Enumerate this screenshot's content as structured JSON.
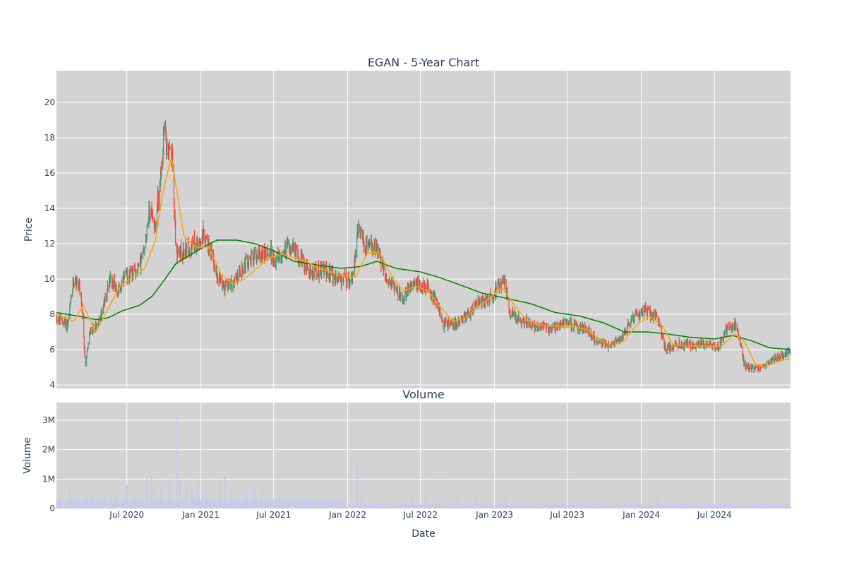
{
  "chart_data": [
    {
      "panel": "price",
      "type": "candlestick",
      "title": "EGAN - 5-Year Chart",
      "ylabel": "Price",
      "ylim": [
        3.8,
        21.8
      ],
      "xlim": [
        "2020-01-08",
        "2025-01-06"
      ],
      "yticks": [
        4,
        6,
        8,
        10,
        12,
        14,
        16,
        18,
        20
      ],
      "background": "#d3d3d3",
      "grid": true,
      "colors": {
        "up": "#3d9970",
        "down": "#ff4136",
        "ma_short": "#ffa500",
        "ma_long": "#008000"
      },
      "close_anchors": [
        [
          "2020-01-08",
          7.8
        ],
        [
          "2020-02-05",
          7.4
        ],
        [
          "2020-02-20",
          10.0
        ],
        [
          "2020-03-05",
          9.6
        ],
        [
          "2020-03-12",
          8.0
        ],
        [
          "2020-03-20",
          5.2
        ],
        [
          "2020-04-01",
          7.0
        ],
        [
          "2020-04-20",
          7.5
        ],
        [
          "2020-05-05",
          8.5
        ],
        [
          "2020-05-20",
          10.0
        ],
        [
          "2020-06-10",
          9.4
        ],
        [
          "2020-07-01",
          10.2
        ],
        [
          "2020-07-20",
          10.3
        ],
        [
          "2020-08-10",
          11.3
        ],
        [
          "2020-08-25",
          13.8
        ],
        [
          "2020-09-10",
          13.2
        ],
        [
          "2020-09-25",
          16.0
        ],
        [
          "2020-10-02",
          18.5
        ],
        [
          "2020-10-12",
          17.2
        ],
        [
          "2020-10-22",
          16.8
        ],
        [
          "2020-11-01",
          11.3
        ],
        [
          "2020-11-20",
          11.6
        ],
        [
          "2020-12-15",
          12.0
        ],
        [
          "2021-01-10",
          12.5
        ],
        [
          "2021-01-25",
          11.6
        ],
        [
          "2021-02-10",
          10.2
        ],
        [
          "2021-03-01",
          9.6
        ],
        [
          "2021-03-25",
          9.8
        ],
        [
          "2021-04-20",
          10.8
        ],
        [
          "2021-05-20",
          11.4
        ],
        [
          "2021-06-20",
          11.5
        ],
        [
          "2021-07-10",
          11.0
        ],
        [
          "2021-08-10",
          12.0
        ],
        [
          "2021-09-05",
          11.2
        ],
        [
          "2021-10-01",
          10.4
        ],
        [
          "2021-11-01",
          10.6
        ],
        [
          "2021-12-01",
          10.0
        ],
        [
          "2022-01-05",
          9.9
        ],
        [
          "2022-01-15",
          10.2
        ],
        [
          "2022-01-25",
          12.8
        ],
        [
          "2022-02-15",
          11.8
        ],
        [
          "2022-03-15",
          11.8
        ],
        [
          "2022-04-10",
          9.8
        ],
        [
          "2022-05-01",
          9.4
        ],
        [
          "2022-05-20",
          9.0
        ],
        [
          "2022-06-10",
          9.8
        ],
        [
          "2022-07-10",
          9.6
        ],
        [
          "2022-08-10",
          8.8
        ],
        [
          "2022-08-25",
          7.5
        ],
        [
          "2022-09-25",
          7.4
        ],
        [
          "2022-10-25",
          8.0
        ],
        [
          "2022-11-20",
          8.6
        ],
        [
          "2022-12-25",
          9.0
        ],
        [
          "2023-01-25",
          9.9
        ],
        [
          "2023-02-10",
          8.0
        ],
        [
          "2023-03-15",
          7.6
        ],
        [
          "2023-04-20",
          7.3
        ],
        [
          "2023-05-20",
          7.2
        ],
        [
          "2023-06-25",
          7.5
        ],
        [
          "2023-07-25",
          7.3
        ],
        [
          "2023-08-25",
          7.0
        ],
        [
          "2023-09-15",
          6.4
        ],
        [
          "2023-10-10",
          6.2
        ],
        [
          "2023-11-10",
          6.6
        ],
        [
          "2023-12-10",
          7.8
        ],
        [
          "2024-01-10",
          8.2
        ],
        [
          "2024-02-10",
          7.8
        ],
        [
          "2024-03-01",
          6.0
        ],
        [
          "2024-04-01",
          6.3
        ],
        [
          "2024-05-01",
          6.2
        ],
        [
          "2024-06-01",
          6.3
        ],
        [
          "2024-07-10",
          6.1
        ],
        [
          "2024-08-01",
          7.2
        ],
        [
          "2024-08-25",
          7.4
        ],
        [
          "2024-09-15",
          5.0
        ],
        [
          "2024-10-15",
          4.9
        ],
        [
          "2024-11-20",
          5.4
        ],
        [
          "2024-12-20",
          5.7
        ],
        [
          "2025-01-06",
          6.0
        ]
      ],
      "ma_short_anchors": [
        [
          "2020-01-08",
          8.0
        ],
        [
          "2020-02-20",
          7.6
        ],
        [
          "2020-03-15",
          8.5
        ],
        [
          "2020-04-15",
          7.0
        ],
        [
          "2020-05-15",
          8.3
        ],
        [
          "2020-06-15",
          9.6
        ],
        [
          "2020-07-15",
          10.1
        ],
        [
          "2020-08-15",
          10.6
        ],
        [
          "2020-09-10",
          12.2
        ],
        [
          "2020-10-01",
          15.2
        ],
        [
          "2020-10-20",
          16.9
        ],
        [
          "2020-11-20",
          12.4
        ],
        [
          "2020-12-20",
          11.8
        ],
        [
          "2021-01-20",
          11.8
        ],
        [
          "2021-02-20",
          10.3
        ],
        [
          "2021-03-20",
          9.7
        ],
        [
          "2021-04-20",
          10.0
        ],
        [
          "2021-05-20",
          10.6
        ],
        [
          "2021-06-20",
          11.2
        ],
        [
          "2021-07-20",
          11.4
        ],
        [
          "2021-08-20",
          11.2
        ],
        [
          "2021-09-20",
          11.0
        ],
        [
          "2021-10-20",
          10.6
        ],
        [
          "2021-12-20",
          10.2
        ],
        [
          "2022-01-20",
          10.1
        ],
        [
          "2022-02-20",
          11.5
        ],
        [
          "2022-03-20",
          11.5
        ],
        [
          "2022-04-20",
          10.2
        ],
        [
          "2022-05-20",
          9.3
        ],
        [
          "2022-06-20",
          9.6
        ],
        [
          "2022-07-20",
          9.3
        ],
        [
          "2022-08-20",
          8.4
        ],
        [
          "2022-09-20",
          7.6
        ],
        [
          "2022-10-20",
          7.8
        ],
        [
          "2022-11-20",
          8.4
        ],
        [
          "2022-12-20",
          8.9
        ],
        [
          "2023-01-20",
          9.5
        ],
        [
          "2023-02-20",
          8.5
        ],
        [
          "2023-03-20",
          7.7
        ],
        [
          "2023-04-20",
          7.4
        ],
        [
          "2023-06-20",
          7.3
        ],
        [
          "2023-07-20",
          7.3
        ],
        [
          "2023-08-20",
          7.1
        ],
        [
          "2023-09-20",
          6.6
        ],
        [
          "2023-10-20",
          6.2
        ],
        [
          "2023-11-20",
          6.5
        ],
        [
          "2023-12-20",
          7.4
        ],
        [
          "2024-01-20",
          7.9
        ],
        [
          "2024-02-20",
          7.4
        ],
        [
          "2024-03-20",
          6.3
        ],
        [
          "2024-04-20",
          6.2
        ],
        [
          "2024-06-20",
          6.2
        ],
        [
          "2024-07-20",
          6.2
        ],
        [
          "2024-08-20",
          6.9
        ],
        [
          "2024-09-15",
          6.4
        ],
        [
          "2024-10-10",
          5.2
        ],
        [
          "2024-11-01",
          5.0
        ],
        [
          "2024-12-01",
          5.3
        ],
        [
          "2025-01-06",
          5.5
        ]
      ],
      "ma_long_anchors": [
        [
          "2020-01-08",
          8.1
        ],
        [
          "2020-03-01",
          7.9
        ],
        [
          "2020-04-15",
          7.7
        ],
        [
          "2020-05-15",
          7.8
        ],
        [
          "2020-06-20",
          8.2
        ],
        [
          "2020-08-01",
          8.5
        ],
        [
          "2020-09-01",
          9.0
        ],
        [
          "2020-10-01",
          9.9
        ],
        [
          "2020-11-01",
          10.9
        ],
        [
          "2020-12-01",
          11.3
        ],
        [
          "2021-01-15",
          11.9
        ],
        [
          "2021-02-10",
          12.2
        ],
        [
          "2021-04-01",
          12.2
        ],
        [
          "2021-05-15",
          12.0
        ],
        [
          "2021-07-01",
          11.6
        ],
        [
          "2021-08-20",
          11.0
        ],
        [
          "2021-10-15",
          10.8
        ],
        [
          "2021-12-15",
          10.6
        ],
        [
          "2022-02-01",
          10.7
        ],
        [
          "2022-03-15",
          11.0
        ],
        [
          "2022-05-01",
          10.6
        ],
        [
          "2022-07-01",
          10.4
        ],
        [
          "2022-08-15",
          10.1
        ],
        [
          "2022-10-15",
          9.6
        ],
        [
          "2022-12-01",
          9.2
        ],
        [
          "2023-02-01",
          8.9
        ],
        [
          "2023-04-01",
          8.6
        ],
        [
          "2023-06-01",
          8.1
        ],
        [
          "2023-08-01",
          7.9
        ],
        [
          "2023-10-01",
          7.5
        ],
        [
          "2023-11-20",
          7.0
        ],
        [
          "2024-01-15",
          7.0
        ],
        [
          "2024-03-01",
          6.9
        ],
        [
          "2024-05-01",
          6.7
        ],
        [
          "2024-07-01",
          6.6
        ],
        [
          "2024-08-15",
          6.8
        ],
        [
          "2024-10-01",
          6.5
        ],
        [
          "2024-11-15",
          6.1
        ],
        [
          "2025-01-06",
          6.0
        ]
      ]
    },
    {
      "panel": "volume",
      "type": "bar",
      "title": "Volume",
      "xlabel": "Date",
      "ylabel": "Volume",
      "ylim": [
        0,
        3600000
      ],
      "yticks": [
        0,
        1000000,
        2000000,
        3000000
      ],
      "ytick_labels": [
        "0",
        "1M",
        "2M",
        "3M"
      ],
      "xticks": [
        "2020-07-01",
        "2021-01-01",
        "2021-07-01",
        "2022-01-01",
        "2022-07-01",
        "2023-01-01",
        "2023-07-01",
        "2024-01-01",
        "2024-07-01"
      ],
      "xtick_labels": [
        "Jul 2020",
        "Jan 2021",
        "Jul 2021",
        "Jan 2022",
        "Jul 2022",
        "Jan 2023",
        "Jul 2023",
        "Jan 2024",
        "Jul 2024"
      ],
      "background": "#d3d3d3",
      "bar_color": "#c7c7ef",
      "spikes": [
        [
          "2020-02-10",
          800000
        ],
        [
          "2020-03-20",
          450000
        ],
        [
          "2020-06-20",
          300000
        ],
        [
          "2020-07-01",
          800000
        ],
        [
          "2020-08-20",
          1000000
        ],
        [
          "2020-09-01",
          1100000
        ],
        [
          "2020-09-25",
          800000
        ],
        [
          "2020-10-15",
          1000000
        ],
        [
          "2020-11-01",
          3400000
        ],
        [
          "2020-11-10",
          900000
        ],
        [
          "2020-11-25",
          700000
        ],
        [
          "2020-12-10",
          600000
        ],
        [
          "2020-12-25",
          1000000
        ],
        [
          "2021-01-15",
          600000
        ],
        [
          "2021-02-15",
          1000000
        ],
        [
          "2021-03-01",
          1100000
        ],
        [
          "2021-03-20",
          700000
        ],
        [
          "2021-04-20",
          500000
        ],
        [
          "2021-05-15",
          800000
        ],
        [
          "2021-06-01",
          600000
        ],
        [
          "2021-06-20",
          500000
        ],
        [
          "2021-07-15",
          400000
        ],
        [
          "2021-08-10",
          350000
        ],
        [
          "2022-01-25",
          1600000
        ],
        [
          "2022-02-05",
          550000
        ],
        [
          "2022-06-10",
          400000
        ],
        [
          "2022-07-10",
          600000
        ],
        [
          "2022-08-20",
          1000000
        ],
        [
          "2022-09-10",
          300000
        ],
        [
          "2022-11-15",
          350000
        ],
        [
          "2023-01-25",
          300000
        ],
        [
          "2023-07-10",
          250000
        ],
        [
          "2023-09-10",
          300000
        ],
        [
          "2024-02-10",
          400000
        ],
        [
          "2024-09-15",
          250000
        ]
      ]
    }
  ]
}
